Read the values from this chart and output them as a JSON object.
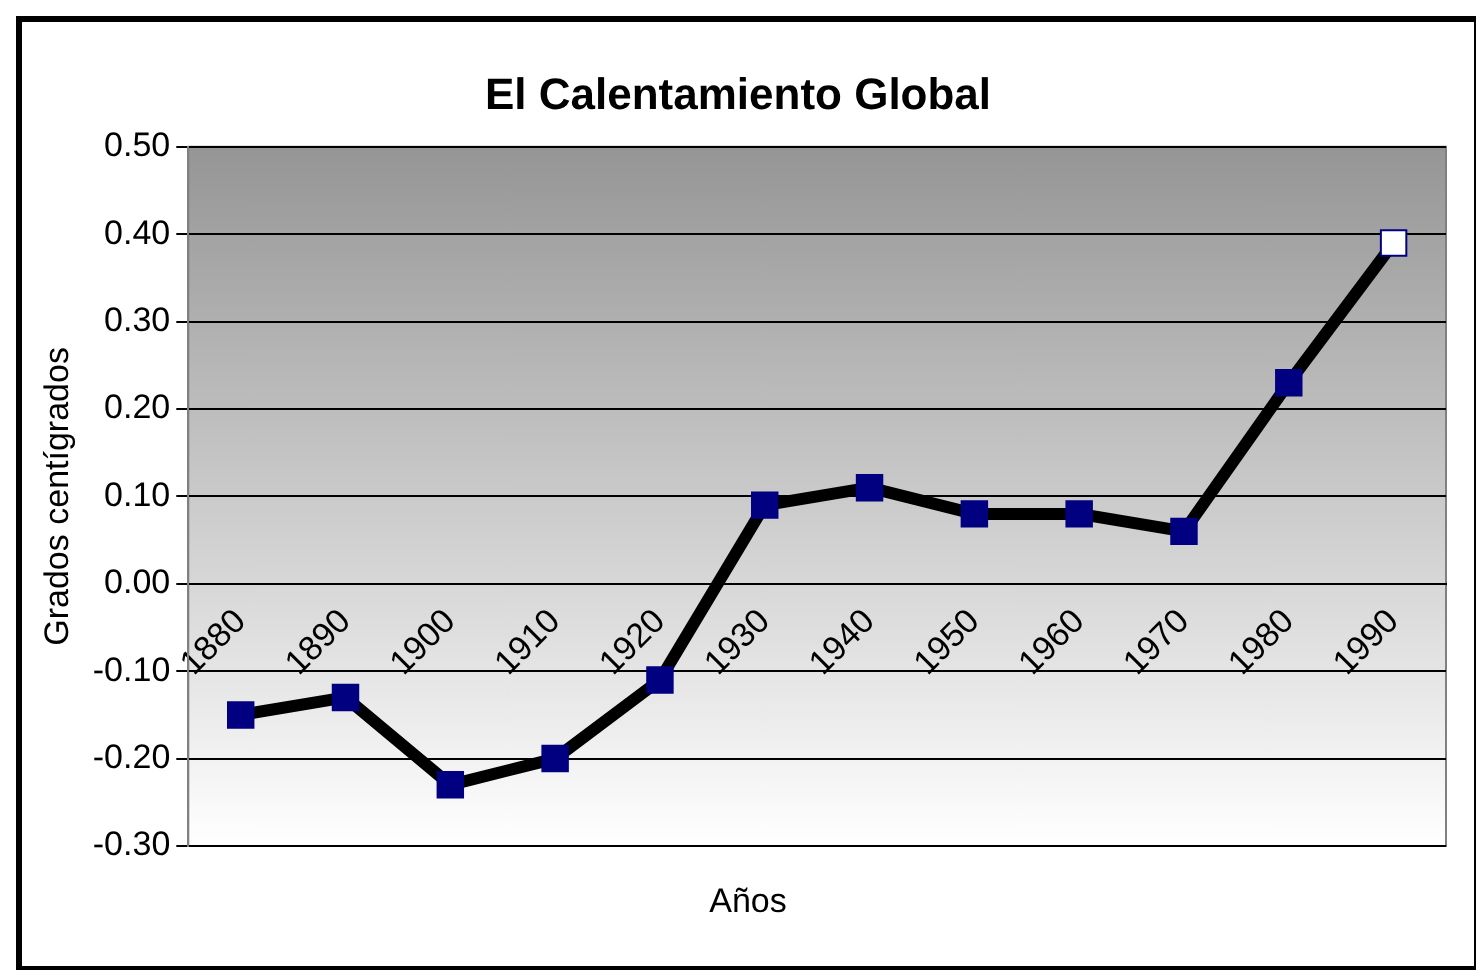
{
  "chart_data": {
    "type": "line",
    "title": "El Calentamiento Global",
    "xlabel": "Años",
    "ylabel": "Grados centígrados",
    "categories": [
      "1880",
      "1890",
      "1900",
      "1910",
      "1920",
      "1930",
      "1940",
      "1950",
      "1960",
      "1970",
      "1980",
      "1990"
    ],
    "series": [
      {
        "color": "#000000",
        "colors": [
          "#000080",
          "#000080",
          "#000080",
          "#000080",
          "#000080",
          "#000080",
          "#000080",
          "#000080",
          "#000080",
          "#000080",
          "#000080",
          "#ffffff"
        ],
        "values": [
          -0.15,
          -0.13,
          -0.23,
          -0.2,
          -0.11,
          0.09,
          0.11,
          0.08,
          0.08,
          0.06,
          0.23,
          0.39
        ]
      }
    ],
    "ylim": [
      -0.3,
      0.5
    ],
    "yticks": [
      {
        "value": -0.3,
        "label": "-0.30"
      },
      {
        "value": -0.2,
        "label": "-0.20"
      },
      {
        "value": -0.1,
        "label": "-0.10"
      },
      {
        "value": 0,
        "label": "0.00"
      },
      {
        "value": 0.1,
        "label": "0.10"
      },
      {
        "value": 0.2,
        "label": "0.20"
      },
      {
        "value": 0.3,
        "label": "0.30"
      },
      {
        "value": 0.4,
        "label": "0.40"
      },
      {
        "value": 0.5,
        "label": "0.50"
      }
    ],
    "grid": "y",
    "legend": false,
    "marker": "square",
    "line_style": "solid"
  }
}
